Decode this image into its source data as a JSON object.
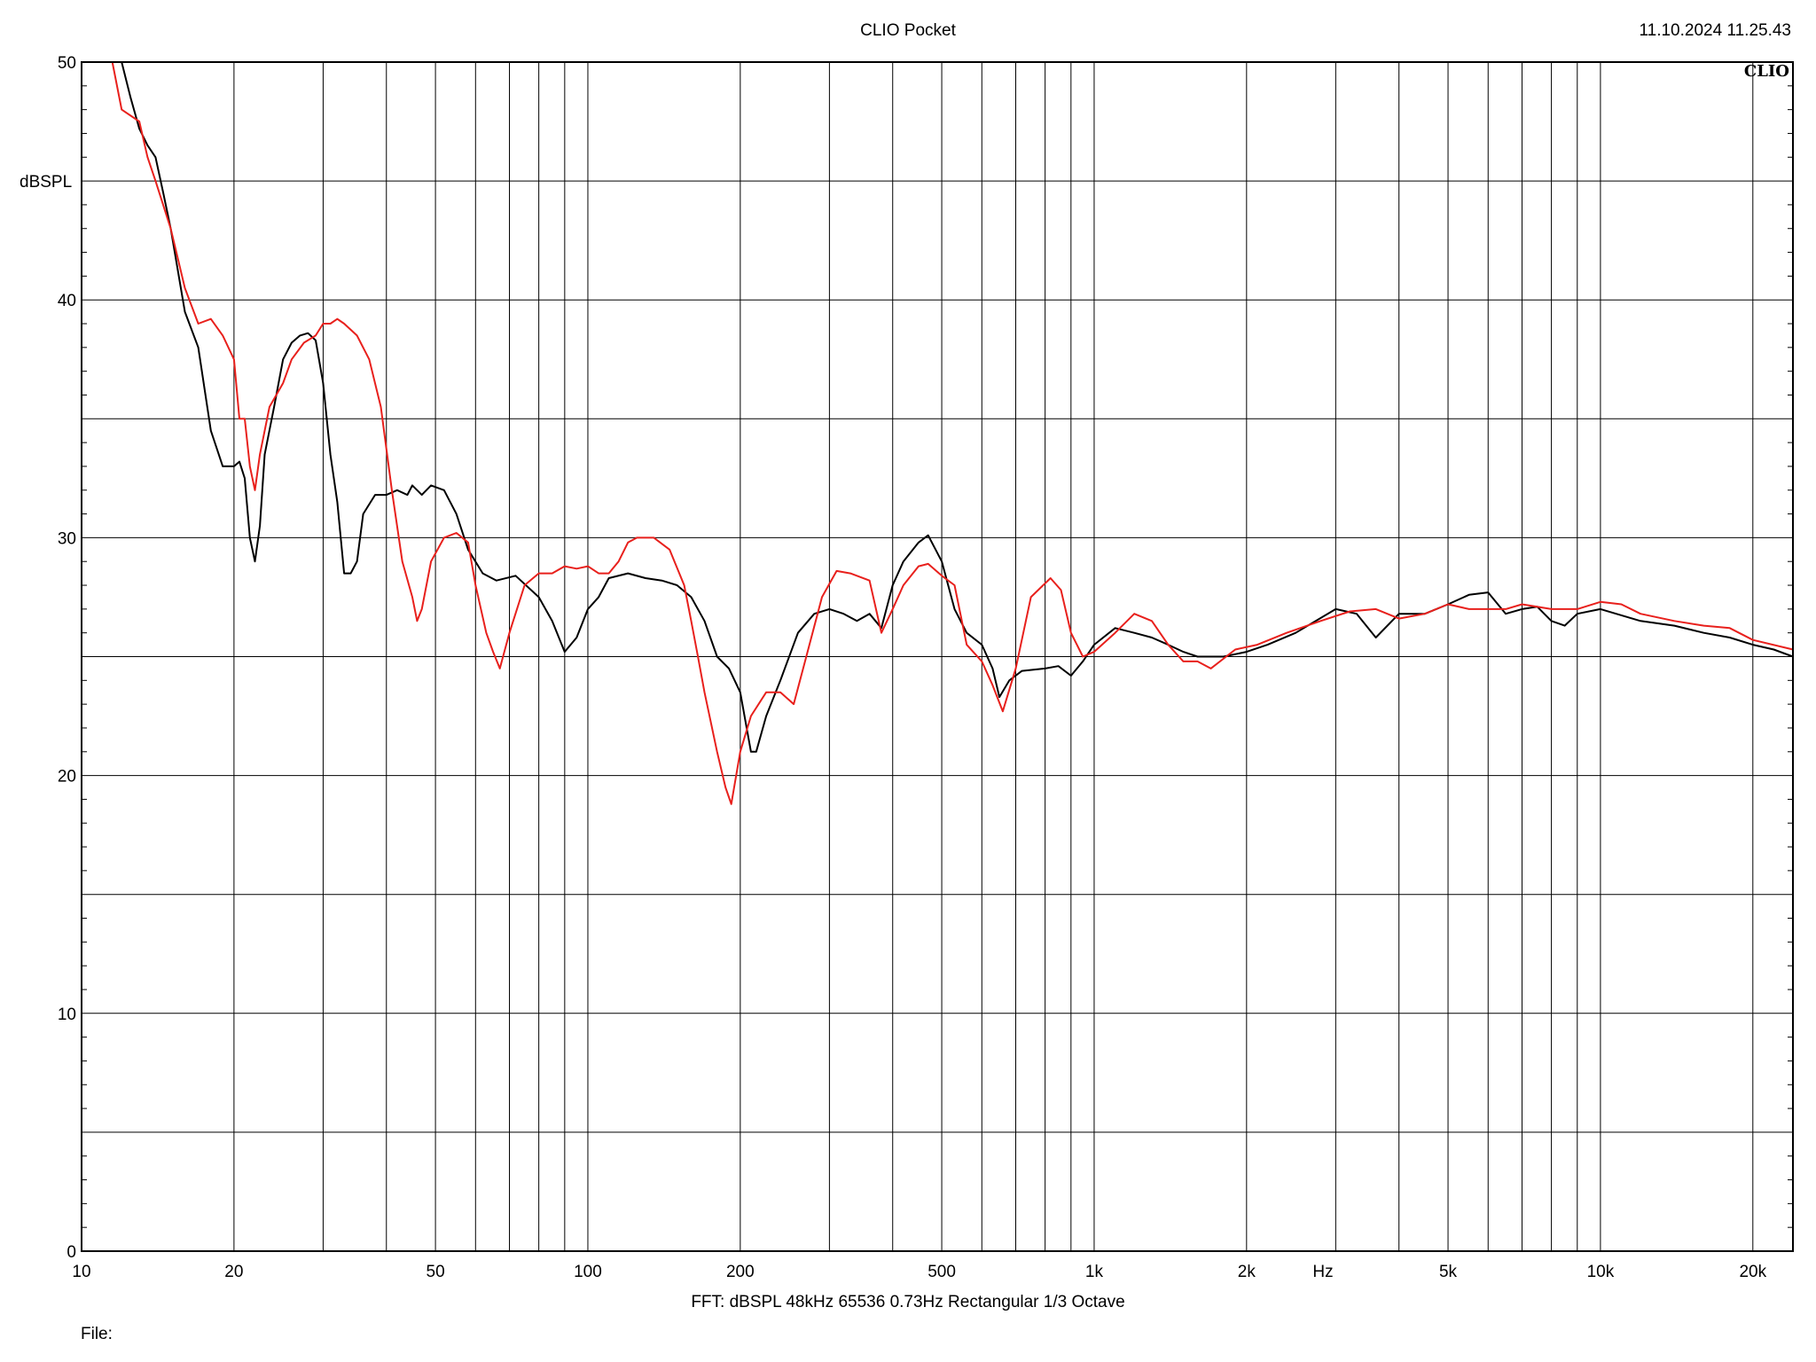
{
  "header": {
    "app_title": "CLIO Pocket",
    "timestamp": "11.10.2024 11.25.43"
  },
  "footer": {
    "settings": "FFT:  dBSPL  48kHz   65536  0.73Hz  Rectangular  1/3 Octave",
    "file_label": "File:"
  },
  "chart_data": {
    "type": "line",
    "watermark": "CLIO",
    "xscale": "log",
    "xlim": [
      10,
      24000
    ],
    "ylim": [
      0,
      50
    ],
    "ylabel": "dBSPL",
    "xunit": "Hz",
    "x_ticks": [
      {
        "value": 10,
        "label": "10"
      },
      {
        "value": 20,
        "label": "20"
      },
      {
        "value": 50,
        "label": "50"
      },
      {
        "value": 100,
        "label": "100"
      },
      {
        "value": 200,
        "label": "200"
      },
      {
        "value": 500,
        "label": "500"
      },
      {
        "value": 1000,
        "label": "1k"
      },
      {
        "value": 2000,
        "label": "2k"
      },
      {
        "value": 5000,
        "label": "5k"
      },
      {
        "value": 10000,
        "label": "10k"
      },
      {
        "value": 20000,
        "label": "20k"
      }
    ],
    "y_ticks": [
      {
        "value": 0,
        "label": "0"
      },
      {
        "value": 10,
        "label": "10"
      },
      {
        "value": 20,
        "label": "20"
      },
      {
        "value": 30,
        "label": "30"
      },
      {
        "value": 40,
        "label": "40"
      },
      {
        "value": 50,
        "label": "50"
      }
    ],
    "grid": true,
    "series": [
      {
        "color": "#000000",
        "points": [
          [
            12.0,
            50.0
          ],
          [
            12.5,
            48.5
          ],
          [
            13.0,
            47.2
          ],
          [
            13.5,
            46.5
          ],
          [
            14.0,
            46.0
          ],
          [
            14.5,
            44.5
          ],
          [
            15.0,
            43.0
          ],
          [
            16.0,
            39.5
          ],
          [
            17.0,
            38.0
          ],
          [
            18.0,
            34.5
          ],
          [
            19.0,
            33.0
          ],
          [
            20.0,
            33.0
          ],
          [
            20.5,
            33.2
          ],
          [
            21.0,
            32.5
          ],
          [
            21.5,
            30.0
          ],
          [
            22.0,
            29.0
          ],
          [
            22.5,
            30.5
          ],
          [
            23.0,
            33.5
          ],
          [
            24.0,
            35.5
          ],
          [
            25.0,
            37.5
          ],
          [
            26.0,
            38.2
          ],
          [
            27.0,
            38.5
          ],
          [
            28.0,
            38.6
          ],
          [
            29.0,
            38.3
          ],
          [
            30.0,
            36.5
          ],
          [
            31.0,
            33.5
          ],
          [
            32.0,
            31.5
          ],
          [
            33.0,
            28.5
          ],
          [
            34.0,
            28.5
          ],
          [
            35.0,
            29.0
          ],
          [
            36.0,
            31.0
          ],
          [
            38.0,
            31.8
          ],
          [
            40.0,
            31.8
          ],
          [
            42.0,
            32.0
          ],
          [
            44.0,
            31.8
          ],
          [
            45.0,
            32.2
          ],
          [
            47.0,
            31.8
          ],
          [
            49.0,
            32.2
          ],
          [
            52.0,
            32.0
          ],
          [
            55.0,
            31.0
          ],
          [
            58.0,
            29.5
          ],
          [
            62.0,
            28.5
          ],
          [
            66.0,
            28.2
          ],
          [
            72.0,
            28.4
          ],
          [
            80.0,
            27.5
          ],
          [
            85.0,
            26.5
          ],
          [
            90.0,
            25.2
          ],
          [
            95.0,
            25.8
          ],
          [
            100.0,
            27.0
          ],
          [
            105.0,
            27.5
          ],
          [
            110.0,
            28.3
          ],
          [
            120.0,
            28.5
          ],
          [
            130.0,
            28.3
          ],
          [
            140.0,
            28.2
          ],
          [
            150.0,
            28.0
          ],
          [
            160.0,
            27.5
          ],
          [
            170.0,
            26.5
          ],
          [
            180.0,
            25.0
          ],
          [
            190.0,
            24.5
          ],
          [
            200.0,
            23.5
          ],
          [
            210.0,
            21.0
          ],
          [
            215.0,
            21.0
          ],
          [
            225.0,
            22.5
          ],
          [
            240.0,
            24.0
          ],
          [
            260.0,
            26.0
          ],
          [
            280.0,
            26.8
          ],
          [
            300.0,
            27.0
          ],
          [
            320.0,
            26.8
          ],
          [
            340.0,
            26.5
          ],
          [
            360.0,
            26.8
          ],
          [
            380.0,
            26.2
          ],
          [
            400.0,
            28.0
          ],
          [
            420.0,
            29.0
          ],
          [
            450.0,
            29.8
          ],
          [
            470.0,
            30.1
          ],
          [
            500.0,
            29.0
          ],
          [
            530.0,
            27.0
          ],
          [
            560.0,
            26.0
          ],
          [
            600.0,
            25.5
          ],
          [
            630.0,
            24.5
          ],
          [
            650.0,
            23.3
          ],
          [
            680.0,
            24.0
          ],
          [
            720.0,
            24.4
          ],
          [
            800.0,
            24.5
          ],
          [
            850.0,
            24.6
          ],
          [
            900.0,
            24.2
          ],
          [
            950.0,
            24.8
          ],
          [
            1000.0,
            25.5
          ],
          [
            1100.0,
            26.2
          ],
          [
            1200.0,
            26.0
          ],
          [
            1300.0,
            25.8
          ],
          [
            1400.0,
            25.5
          ],
          [
            1500.0,
            25.2
          ],
          [
            1600.0,
            25.0
          ],
          [
            1800.0,
            25.0
          ],
          [
            2000.0,
            25.2
          ],
          [
            2200.0,
            25.5
          ],
          [
            2500.0,
            26.0
          ],
          [
            3000.0,
            27.0
          ],
          [
            3300.0,
            26.8
          ],
          [
            3600.0,
            25.8
          ],
          [
            4000.0,
            26.8
          ],
          [
            4500.0,
            26.8
          ],
          [
            5000.0,
            27.2
          ],
          [
            5500.0,
            27.6
          ],
          [
            6000.0,
            27.7
          ],
          [
            6500.0,
            26.8
          ],
          [
            7000.0,
            27.0
          ],
          [
            7500.0,
            27.1
          ],
          [
            8000.0,
            26.5
          ],
          [
            8500.0,
            26.3
          ],
          [
            9000.0,
            26.8
          ],
          [
            10000.0,
            27.0
          ],
          [
            12000.0,
            26.5
          ],
          [
            14000.0,
            26.3
          ],
          [
            16000.0,
            26.0
          ],
          [
            18000.0,
            25.8
          ],
          [
            20000.0,
            25.5
          ],
          [
            22000.0,
            25.3
          ],
          [
            24000.0,
            25.0
          ]
        ]
      },
      {
        "color": "#e8201c",
        "points": [
          [
            11.5,
            50.0
          ],
          [
            12.0,
            48.0
          ],
          [
            13.0,
            47.5
          ],
          [
            13.5,
            46.0
          ],
          [
            14.0,
            45.0
          ],
          [
            15.0,
            43.0
          ],
          [
            16.0,
            40.5
          ],
          [
            17.0,
            39.0
          ],
          [
            18.0,
            39.2
          ],
          [
            19.0,
            38.5
          ],
          [
            20.0,
            37.5
          ],
          [
            20.5,
            35.0
          ],
          [
            21.0,
            35.0
          ],
          [
            21.5,
            33.0
          ],
          [
            22.0,
            32.0
          ],
          [
            22.5,
            33.5
          ],
          [
            23.5,
            35.5
          ],
          [
            25.0,
            36.5
          ],
          [
            26.0,
            37.5
          ],
          [
            27.5,
            38.2
          ],
          [
            29.0,
            38.5
          ],
          [
            30.0,
            39.0
          ],
          [
            31.0,
            39.0
          ],
          [
            32.0,
            39.2
          ],
          [
            33.0,
            39.0
          ],
          [
            35.0,
            38.5
          ],
          [
            37.0,
            37.5
          ],
          [
            39.0,
            35.5
          ],
          [
            41.0,
            32.0
          ],
          [
            43.0,
            29.0
          ],
          [
            45.0,
            27.5
          ],
          [
            46.0,
            26.5
          ],
          [
            47.0,
            27.0
          ],
          [
            49.0,
            29.0
          ],
          [
            52.0,
            30.0
          ],
          [
            55.0,
            30.2
          ],
          [
            58.0,
            29.8
          ],
          [
            60.0,
            28.0
          ],
          [
            63.0,
            26.0
          ],
          [
            65.0,
            25.2
          ],
          [
            67.0,
            24.5
          ],
          [
            70.0,
            26.0
          ],
          [
            75.0,
            28.0
          ],
          [
            80.0,
            28.5
          ],
          [
            85.0,
            28.5
          ],
          [
            90.0,
            28.8
          ],
          [
            95.0,
            28.7
          ],
          [
            100.0,
            28.8
          ],
          [
            105.0,
            28.5
          ],
          [
            110.0,
            28.5
          ],
          [
            115.0,
            29.0
          ],
          [
            120.0,
            29.8
          ],
          [
            125.0,
            30.0
          ],
          [
            135.0,
            30.0
          ],
          [
            145.0,
            29.5
          ],
          [
            155.0,
            28.0
          ],
          [
            160.0,
            26.5
          ],
          [
            165.0,
            25.0
          ],
          [
            170.0,
            23.5
          ],
          [
            180.0,
            21.0
          ],
          [
            187.0,
            19.5
          ],
          [
            192.0,
            18.8
          ],
          [
            200.0,
            21.0
          ],
          [
            210.0,
            22.5
          ],
          [
            225.0,
            23.5
          ],
          [
            240.0,
            23.5
          ],
          [
            255.0,
            23.0
          ],
          [
            270.0,
            25.0
          ],
          [
            290.0,
            27.5
          ],
          [
            310.0,
            28.6
          ],
          [
            330.0,
            28.5
          ],
          [
            360.0,
            28.2
          ],
          [
            380.0,
            26.0
          ],
          [
            400.0,
            27.0
          ],
          [
            420.0,
            28.0
          ],
          [
            450.0,
            28.8
          ],
          [
            470.0,
            28.9
          ],
          [
            500.0,
            28.4
          ],
          [
            530.0,
            28.0
          ],
          [
            560.0,
            25.5
          ],
          [
            600.0,
            24.8
          ],
          [
            630.0,
            23.8
          ],
          [
            660.0,
            22.7
          ],
          [
            700.0,
            24.5
          ],
          [
            750.0,
            27.5
          ],
          [
            820.0,
            28.3
          ],
          [
            860.0,
            27.8
          ],
          [
            900.0,
            26.0
          ],
          [
            950.0,
            25.0
          ],
          [
            1000.0,
            25.2
          ],
          [
            1100.0,
            26.0
          ],
          [
            1200.0,
            26.8
          ],
          [
            1300.0,
            26.5
          ],
          [
            1400.0,
            25.5
          ],
          [
            1500.0,
            24.8
          ],
          [
            1600.0,
            24.8
          ],
          [
            1700.0,
            24.5
          ],
          [
            1900.0,
            25.3
          ],
          [
            2100.0,
            25.5
          ],
          [
            2400.0,
            26.0
          ],
          [
            2800.0,
            26.5
          ],
          [
            3200.0,
            26.9
          ],
          [
            3600.0,
            27.0
          ],
          [
            4000.0,
            26.6
          ],
          [
            4500.0,
            26.8
          ],
          [
            5000.0,
            27.2
          ],
          [
            5500.0,
            27.0
          ],
          [
            6000.0,
            27.0
          ],
          [
            6500.0,
            27.0
          ],
          [
            7000.0,
            27.2
          ],
          [
            8000.0,
            27.0
          ],
          [
            9000.0,
            27.0
          ],
          [
            10000.0,
            27.3
          ],
          [
            11000.0,
            27.2
          ],
          [
            12000.0,
            26.8
          ],
          [
            14000.0,
            26.5
          ],
          [
            16000.0,
            26.3
          ],
          [
            18000.0,
            26.2
          ],
          [
            20000.0,
            25.7
          ],
          [
            24000.0,
            25.3
          ]
        ]
      }
    ]
  }
}
